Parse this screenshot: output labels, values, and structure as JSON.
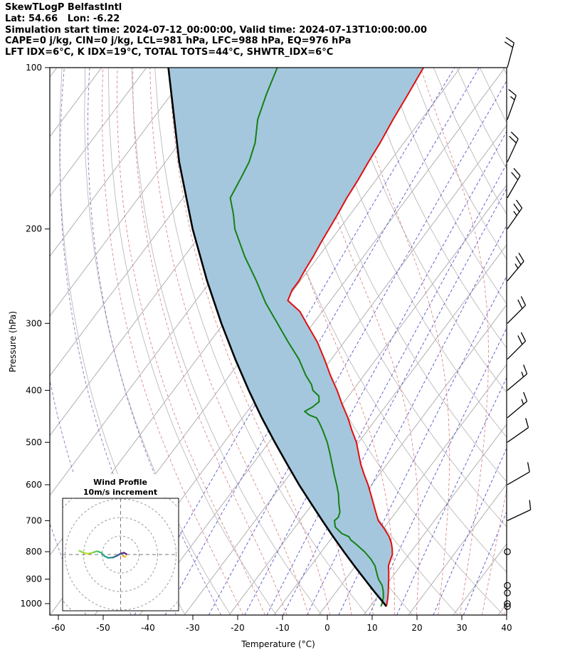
{
  "header": {
    "line1": "SkewTLogP BelfastIntl",
    "line2": "Lat: 54.66   Lon: -6.22",
    "line3": "Simulation start time: 2024-07-12_00:00:00, Valid time: 2024-07-13T10:00:00.00",
    "line4": "CAPE=0 j/kg, CIN=0 j/kg, LCL=981 hPa, LFC=988 hPa, EQ=976 hPa",
    "line5": "LFT IDX=6°C, K IDX=19°C, TOTAL TOTS=44°C, SHWTR_IDX=6°C"
  },
  "axes": {
    "xlabel": "Temperature (°C)",
    "ylabel": "Pressure (hPa)",
    "pressure_ticks": [
      100,
      200,
      300,
      400,
      500,
      600,
      700,
      800,
      900,
      1000
    ],
    "temperature_ticks": [
      -60,
      -50,
      -40,
      -30,
      -20,
      -10,
      0,
      10,
      20,
      30,
      40
    ],
    "pressure_range": [
      100,
      1050
    ],
    "temperature_range": [
      -60,
      40
    ]
  },
  "inset": {
    "title_line1": "Wind Profile",
    "title_line2": "10m/s increment"
  },
  "chart_data": {
    "type": "skewt-logp",
    "station": "BelfastIntl",
    "lat": 54.66,
    "lon": -6.22,
    "sim_start": "2024-07-12_00:00:00",
    "valid_time": "2024-07-13T10:00:00.00",
    "indices": {
      "CAPE_j_kg": 0,
      "CIN_j_kg": 0,
      "LCL_hPa": 981,
      "LFC_hPa": 988,
      "EQ_hPa": 976,
      "LFT_IDX_C": 6,
      "K_IDX_C": 19,
      "TOTAL_TOTS_C": 44,
      "SHWTR_IDX_C": 6
    },
    "temperature_profile": [
      [
        1012,
        13.6
      ],
      [
        1000,
        13.3
      ],
      [
        975,
        12.5
      ],
      [
        950,
        11.6
      ],
      [
        925,
        10.6
      ],
      [
        900,
        9.6
      ],
      [
        875,
        8.5
      ],
      [
        850,
        7.3
      ],
      [
        830,
        6.8
      ],
      [
        810,
        6.3
      ],
      [
        790,
        5.3
      ],
      [
        770,
        4.1
      ],
      [
        750,
        2.6
      ],
      [
        725,
        0.2
      ],
      [
        700,
        -2.5
      ],
      [
        675,
        -4.5
      ],
      [
        650,
        -6.5
      ],
      [
        625,
        -8.6
      ],
      [
        600,
        -10.8
      ],
      [
        575,
        -13.3
      ],
      [
        550,
        -15.8
      ],
      [
        525,
        -18.1
      ],
      [
        500,
        -20.5
      ],
      [
        475,
        -23.5
      ],
      [
        450,
        -26.5
      ],
      [
        425,
        -30.0
      ],
      [
        400,
        -33.5
      ],
      [
        375,
        -37.5
      ],
      [
        350,
        -41.5
      ],
      [
        325,
        -46.0
      ],
      [
        300,
        -51.5
      ],
      [
        285,
        -55.0
      ],
      [
        272,
        -59.5
      ],
      [
        260,
        -60.3
      ],
      [
        250,
        -60.3
      ],
      [
        238,
        -60.8
      ],
      [
        225,
        -61.2
      ],
      [
        212,
        -61.8
      ],
      [
        200,
        -62.3
      ],
      [
        188,
        -62.8
      ],
      [
        175,
        -63.5
      ],
      [
        162,
        -64.0
      ],
      [
        150,
        -64.7
      ],
      [
        138,
        -65.3
      ],
      [
        125,
        -66.3
      ],
      [
        112,
        -67.2
      ],
      [
        100,
        -68.2
      ]
    ],
    "dewpoint_profile": [
      [
        1012,
        12.4
      ],
      [
        1000,
        12.2
      ],
      [
        975,
        11.5
      ],
      [
        950,
        10.5
      ],
      [
        925,
        9.2
      ],
      [
        900,
        7.3
      ],
      [
        875,
        5.8
      ],
      [
        850,
        4.3
      ],
      [
        825,
        2.2
      ],
      [
        800,
        -0.4
      ],
      [
        775,
        -3.5
      ],
      [
        760,
        -5.5
      ],
      [
        750,
        -6.4
      ],
      [
        740,
        -8.5
      ],
      [
        720,
        -11.0
      ],
      [
        700,
        -12.3
      ],
      [
        690,
        -12.0
      ],
      [
        675,
        -12.5
      ],
      [
        650,
        -14.2
      ],
      [
        625,
        -15.8
      ],
      [
        600,
        -17.8
      ],
      [
        575,
        -20.0
      ],
      [
        550,
        -22.2
      ],
      [
        525,
        -24.5
      ],
      [
        500,
        -27.0
      ],
      [
        475,
        -30.0
      ],
      [
        460,
        -32.0
      ],
      [
        450,
        -33.5
      ],
      [
        445,
        -35.5
      ],
      [
        438,
        -37.2
      ],
      [
        430,
        -36.2
      ],
      [
        420,
        -35.6
      ],
      [
        410,
        -36.6
      ],
      [
        400,
        -38.9
      ],
      [
        390,
        -40.2
      ],
      [
        375,
        -43.0
      ],
      [
        350,
        -47.2
      ],
      [
        325,
        -52.5
      ],
      [
        300,
        -58.0
      ],
      [
        275,
        -64.0
      ],
      [
        250,
        -69.8
      ],
      [
        225,
        -76.5
      ],
      [
        200,
        -83.3
      ],
      [
        188,
        -86.0
      ],
      [
        175,
        -89.5
      ],
      [
        160,
        -90.5
      ],
      [
        150,
        -91.3
      ],
      [
        138,
        -93.2
      ],
      [
        125,
        -96.5
      ],
      [
        112,
        -98.8
      ],
      [
        100,
        -100.8
      ]
    ],
    "parcel_profile": [
      [
        1012,
        13.6
      ],
      [
        1000,
        12.7
      ],
      [
        950,
        8.5
      ],
      [
        900,
        4.2
      ],
      [
        850,
        -0.3
      ],
      [
        800,
        -5.0
      ],
      [
        750,
        -9.9
      ],
      [
        700,
        -15.0
      ],
      [
        650,
        -20.4
      ],
      [
        600,
        -26.2
      ],
      [
        550,
        -32.2
      ],
      [
        500,
        -38.7
      ],
      [
        450,
        -45.7
      ],
      [
        400,
        -53.2
      ],
      [
        350,
        -61.4
      ],
      [
        300,
        -70.5
      ],
      [
        250,
        -80.8
      ],
      [
        200,
        -92.7
      ],
      [
        150,
        -106.9
      ],
      [
        100,
        -125.1
      ]
    ],
    "wind_levels": [
      {
        "p": 100,
        "spd": 18,
        "dir": 15,
        "calm": false
      },
      {
        "p": 125,
        "spd": 15,
        "dir": 20,
        "calm": false
      },
      {
        "p": 150,
        "spd": 20,
        "dir": 25,
        "calm": false
      },
      {
        "p": 175,
        "spd": 22,
        "dir": 30,
        "calm": false
      },
      {
        "p": 200,
        "spd": 25,
        "dir": 35,
        "calm": false
      },
      {
        "p": 250,
        "spd": 25,
        "dir": 40,
        "calm": false
      },
      {
        "p": 300,
        "spd": 22,
        "dir": 45,
        "calm": false
      },
      {
        "p": 350,
        "spd": 18,
        "dir": 45,
        "calm": false
      },
      {
        "p": 400,
        "spd": 15,
        "dir": 50,
        "calm": false
      },
      {
        "p": 450,
        "spd": 15,
        "dir": 50,
        "calm": false
      },
      {
        "p": 500,
        "spd": 12,
        "dir": 55,
        "calm": false
      },
      {
        "p": 600,
        "spd": 10,
        "dir": 60,
        "calm": false
      },
      {
        "p": 700,
        "spd": 8,
        "dir": 65,
        "calm": false
      },
      {
        "p": 800,
        "spd": 0,
        "dir": 0,
        "calm": true
      },
      {
        "p": 925,
        "spd": 0,
        "dir": 0,
        "calm": true
      },
      {
        "p": 955,
        "spd": 0,
        "dir": 0,
        "calm": true
      },
      {
        "p": 1000,
        "spd": 0,
        "dir": 0,
        "calm": true
      },
      {
        "p": 1012,
        "spd": 0,
        "dir": 0,
        "calm": true
      }
    ],
    "hodograph": {
      "increment_ms": 10,
      "rings_ms": [
        10,
        20,
        30,
        40
      ],
      "trace_uv_ms": [
        [
          1.2,
          -0.6
        ],
        [
          2.6,
          -1.4
        ],
        [
          3.2,
          0.2
        ],
        [
          1.8,
          1.0
        ],
        [
          0.2,
          0.6
        ],
        [
          -1.8,
          -0.6
        ],
        [
          -4.2,
          -1.6
        ],
        [
          -6.6,
          -1.8
        ],
        [
          -8.8,
          -0.8
        ],
        [
          -10.4,
          1.0
        ],
        [
          -12.8,
          1.8
        ],
        [
          -15.2,
          1.0
        ],
        [
          -17.6,
          0.4
        ],
        [
          -20.0,
          1.0
        ],
        [
          -22.4,
          2.0
        ]
      ],
      "segment_colors": [
        "#e8a33d",
        "#efe350",
        "#5c1a9c",
        "#46327e",
        "#3b528b",
        "#31688e",
        "#26828e",
        "#1f9e89",
        "#25ab82",
        "#40bd72",
        "#67cc5c",
        "#98d83e",
        "#c5e021",
        "#8fd744"
      ]
    },
    "background": {
      "isotherms_C": {
        "start": -160,
        "end": 40,
        "step": 10
      },
      "dry_adiabats_K": {
        "start": 240,
        "end": 440,
        "step": 10
      },
      "moist_adiabats_C": {
        "start": -20,
        "end": 40,
        "step": 5
      },
      "moist_adiabats_cold_C": {
        "start": -65,
        "end": -25,
        "step": 10
      },
      "mixing_ratio_g_kg": [
        0.1,
        0.2,
        0.5,
        1,
        1.5,
        2,
        3,
        5,
        8,
        12,
        20,
        30
      ]
    },
    "colors": {
      "temperature": "#e01010",
      "dewpoint": "#158015",
      "parcel": "#000000",
      "shade": "#a4c7dd",
      "isotherm": "#a8a8a8",
      "dry_adiabat": "#bababa",
      "moist_adiabat": "#dc8a8a",
      "moist_adiabat_cold": "#9b6fb8",
      "mixing_ratio": "#5555cc",
      "barb": "#000000"
    }
  }
}
